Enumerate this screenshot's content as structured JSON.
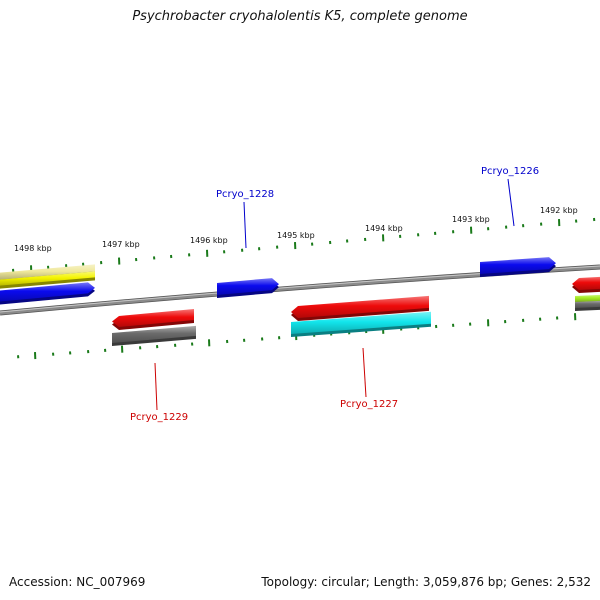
{
  "title": "Psychrobacter cryohalolentis K5, complete genome",
  "footer": {
    "accession": "Accession: NC_007969",
    "summary": "Topology: circular; Length: 3,059,876 bp; Genes: 2,532"
  },
  "colors": {
    "backbone": "#8a8a8a",
    "tick": "#1a7a1a",
    "forward_label": "#0000cc",
    "reverse_label": "#cc0000",
    "blue": "#0a0aee",
    "red": "#ee0a0a",
    "gray": "#6a6a6a",
    "cyan": "#12e6ec",
    "yellow": "#f4f400",
    "khaki": "#efe89a",
    "lime": "#a6ec24"
  },
  "scale_labels": [
    "1498 kbp",
    "1497 kbp",
    "1496 kbp",
    "1495 kbp",
    "1494 kbp",
    "1493 kbp",
    "1492 kbp"
  ],
  "gene_labels": [
    {
      "name": "Pcryo_1228",
      "strand": "forward"
    },
    {
      "name": "Pcryo_1226",
      "strand": "forward"
    },
    {
      "name": "Pcryo_1229",
      "strand": "reverse"
    },
    {
      "name": "Pcryo_1227",
      "strand": "reverse"
    }
  ]
}
